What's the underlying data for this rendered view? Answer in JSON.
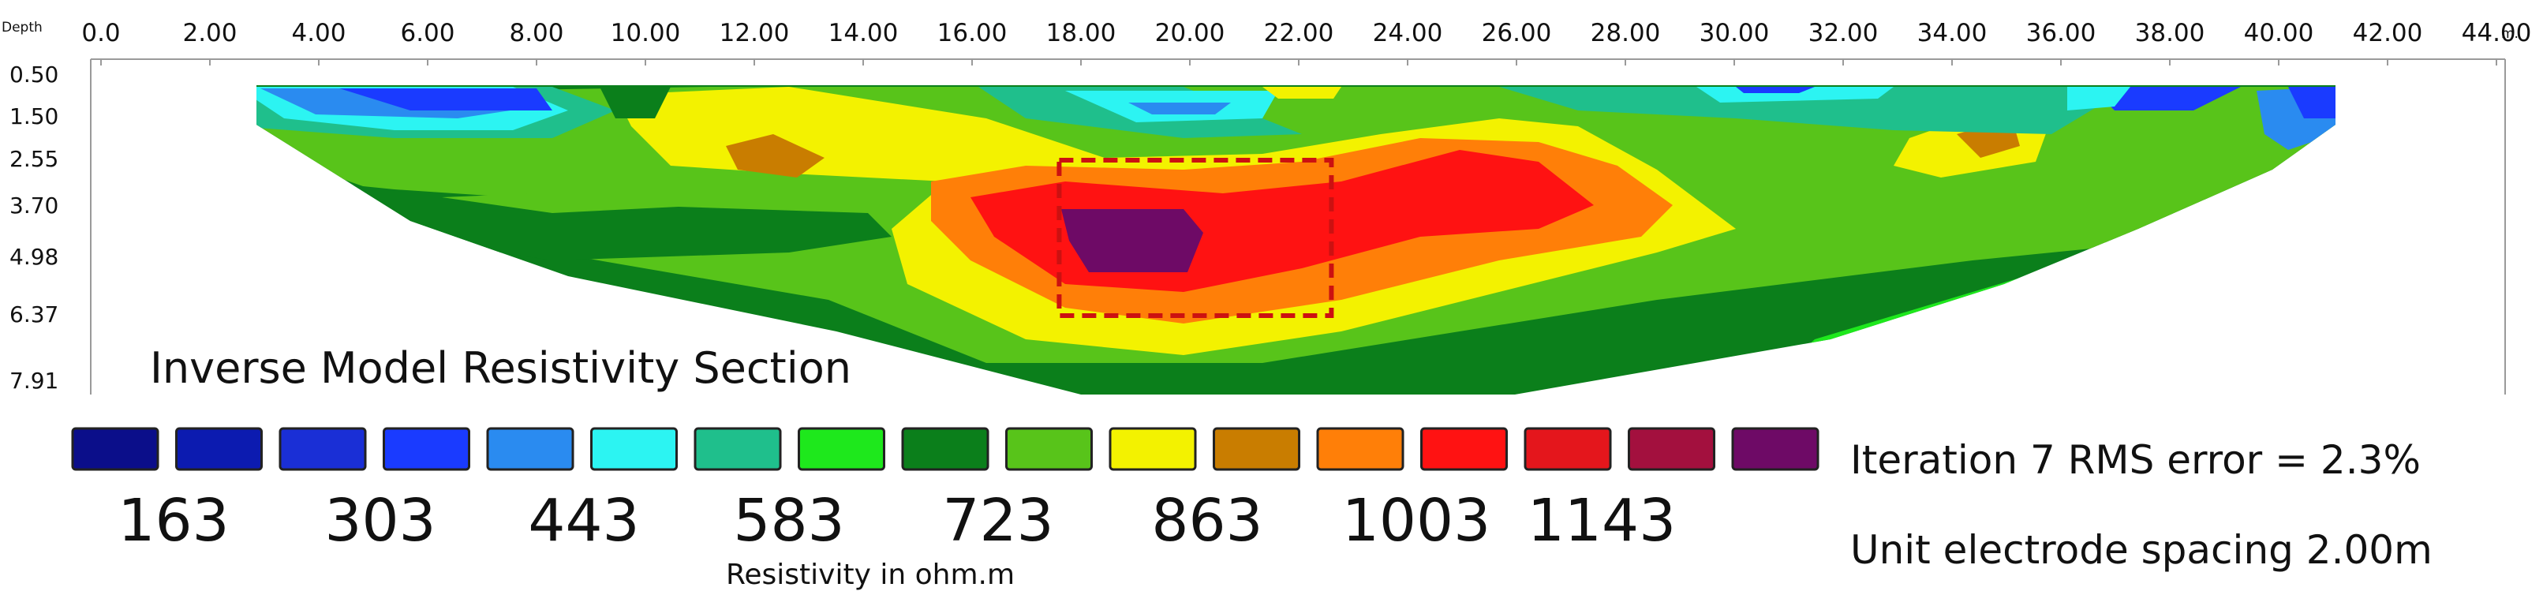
{
  "chart_data": {
    "type": "heatmap",
    "title": "Inverse Model Resistivity Section",
    "xlabel_unit": "m.",
    "ylabel": "Depth",
    "x_ticks": [
      "0.0",
      "2.00",
      "4.00",
      "6.00",
      "8.00",
      "10.00",
      "12.00",
      "14.00",
      "16.00",
      "18.00",
      "20.00",
      "22.00",
      "24.00",
      "26.00",
      "28.00",
      "30.00",
      "32.00",
      "34.00",
      "36.00",
      "38.00",
      "40.00",
      "42.00",
      "44.00"
    ],
    "y_ticks": [
      "0.50",
      "1.50",
      "2.55",
      "3.70",
      "4.98",
      "6.37",
      "7.91"
    ],
    "xlim": [
      0,
      44
    ],
    "color_scale": {
      "unit_label": "Resistivity in ohm.m",
      "colors": [
        "#0b0e8a",
        "#0c1bb0",
        "#1a2fd6",
        "#1a3bff",
        "#2a8bf0",
        "#2cf4f2",
        "#1fbf8c",
        "#1ee81c",
        "#0b7f1b",
        "#58c41a",
        "#f3f200",
        "#c97d00",
        "#ff7f08",
        "#ff1212",
        "#e4161c",
        "#a3103e",
        "#6e0a66"
      ],
      "labels": [
        "163",
        "303",
        "443",
        "583",
        "723",
        "863",
        "1003",
        "1143"
      ]
    },
    "highlight_box": {
      "x_range": [
        17.6,
        22.6
      ],
      "depth_range": [
        2.55,
        6.37
      ],
      "style": "dashed",
      "color": "#cc1111"
    },
    "info": {
      "iteration_text": "Iteration 7 RMS error = 2.3%",
      "spacing_text": "Unit electrode spacing 2.00m"
    }
  }
}
